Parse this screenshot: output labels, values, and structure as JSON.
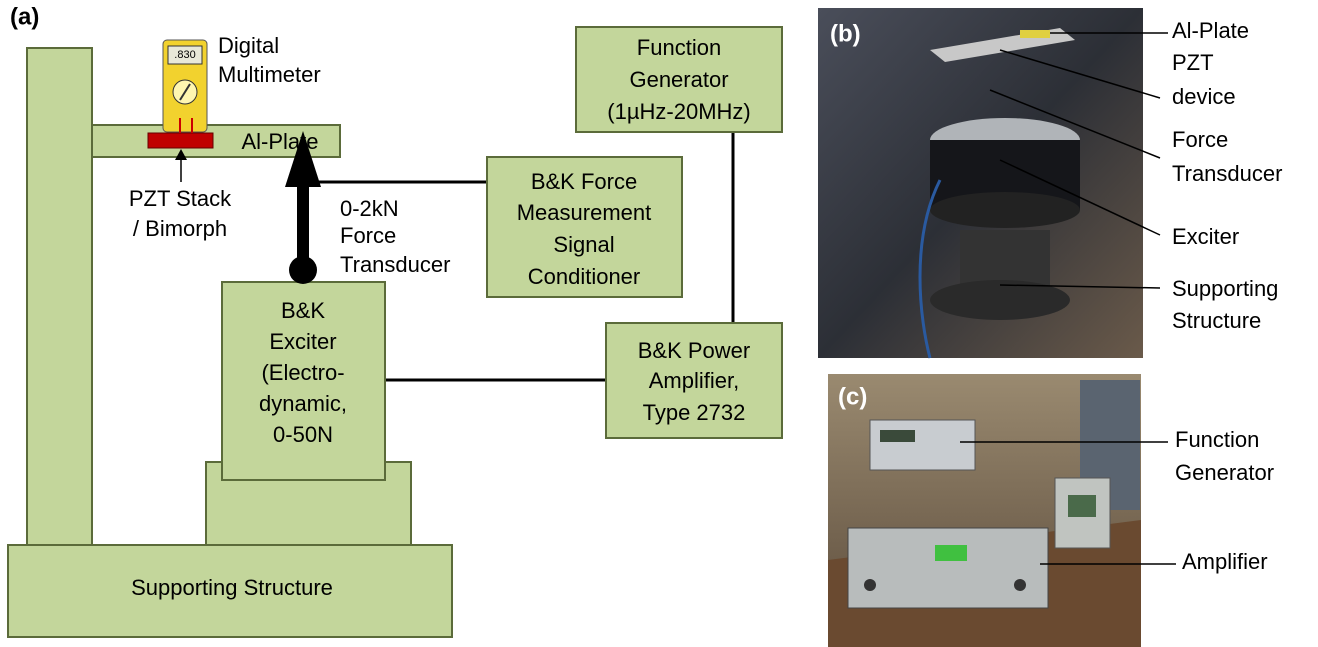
{
  "panel_labels": [
    "(a)",
    "(b)",
    "(c)"
  ],
  "diagram": {
    "supporting_structure": "Supporting Structure",
    "al_plate": "Al-Plate",
    "multimeter": [
      "Digital",
      "Multimeter"
    ],
    "multimeter_display": ".830",
    "pzt": [
      "PZT Stack",
      "/ Bimorph"
    ],
    "force_transducer": [
      "0-2kN",
      "Force",
      "Transducer"
    ],
    "exciter": [
      "B&K",
      "Exciter",
      "(Electro-",
      "dynamic,",
      "0-50N"
    ],
    "signal_conditioner": [
      "B&K Force",
      "Measurement",
      "Signal",
      "Conditioner"
    ],
    "function_generator": [
      "Function",
      "Generator",
      "(1µHz-20MHz)"
    ],
    "power_amplifier": [
      "B&K Power",
      "Amplifier,",
      "Type 2732"
    ]
  },
  "photo_b": {
    "callouts": [
      [
        "Al-Plate"
      ],
      [
        "PZT",
        "device"
      ],
      [
        "Force",
        "Transducer"
      ],
      [
        "Exciter"
      ],
      [
        "Supporting",
        "Structure"
      ]
    ]
  },
  "photo_c": {
    "callouts": [
      [
        "Function",
        "Generator"
      ],
      [
        "Amplifier"
      ]
    ]
  }
}
